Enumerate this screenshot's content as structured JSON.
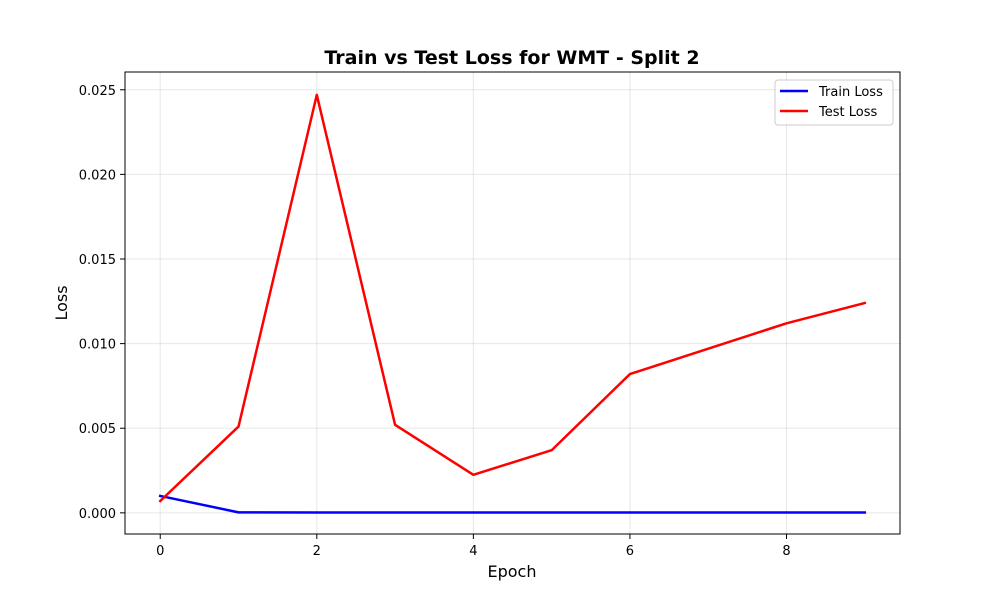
{
  "chart_data": {
    "type": "line",
    "title": "Train vs Test Loss for WMT - Split 2",
    "xlabel": "Epoch",
    "ylabel": "Loss",
    "xlim": [
      -0.45,
      9.45
    ],
    "ylim": [
      -0.00125,
      0.02605
    ],
    "xticks": [
      0,
      2,
      4,
      6,
      8
    ],
    "xtick_labels": [
      "0",
      "2",
      "4",
      "6",
      "8"
    ],
    "yticks": [
      0.0,
      0.005,
      0.01,
      0.015,
      0.02,
      0.025
    ],
    "ytick_labels": [
      "0.000",
      "0.005",
      "0.010",
      "0.015",
      "0.020",
      "0.025"
    ],
    "grid": true,
    "legend_position": "top-right",
    "x": [
      0,
      1,
      2,
      3,
      4,
      5,
      6,
      7,
      8,
      9
    ],
    "series": [
      {
        "name": "Train Loss",
        "color": "#0000ff",
        "values": [
          0.001,
          3e-05,
          2e-05,
          2e-05,
          2e-05,
          2e-05,
          2e-05,
          2e-05,
          2e-05,
          2e-05
        ]
      },
      {
        "name": "Test Loss",
        "color": "#ff0000",
        "values": [
          0.0007,
          0.0051,
          0.0247,
          0.0052,
          0.00225,
          0.0037,
          0.0082,
          0.0097,
          0.0112,
          0.0124
        ]
      }
    ]
  }
}
